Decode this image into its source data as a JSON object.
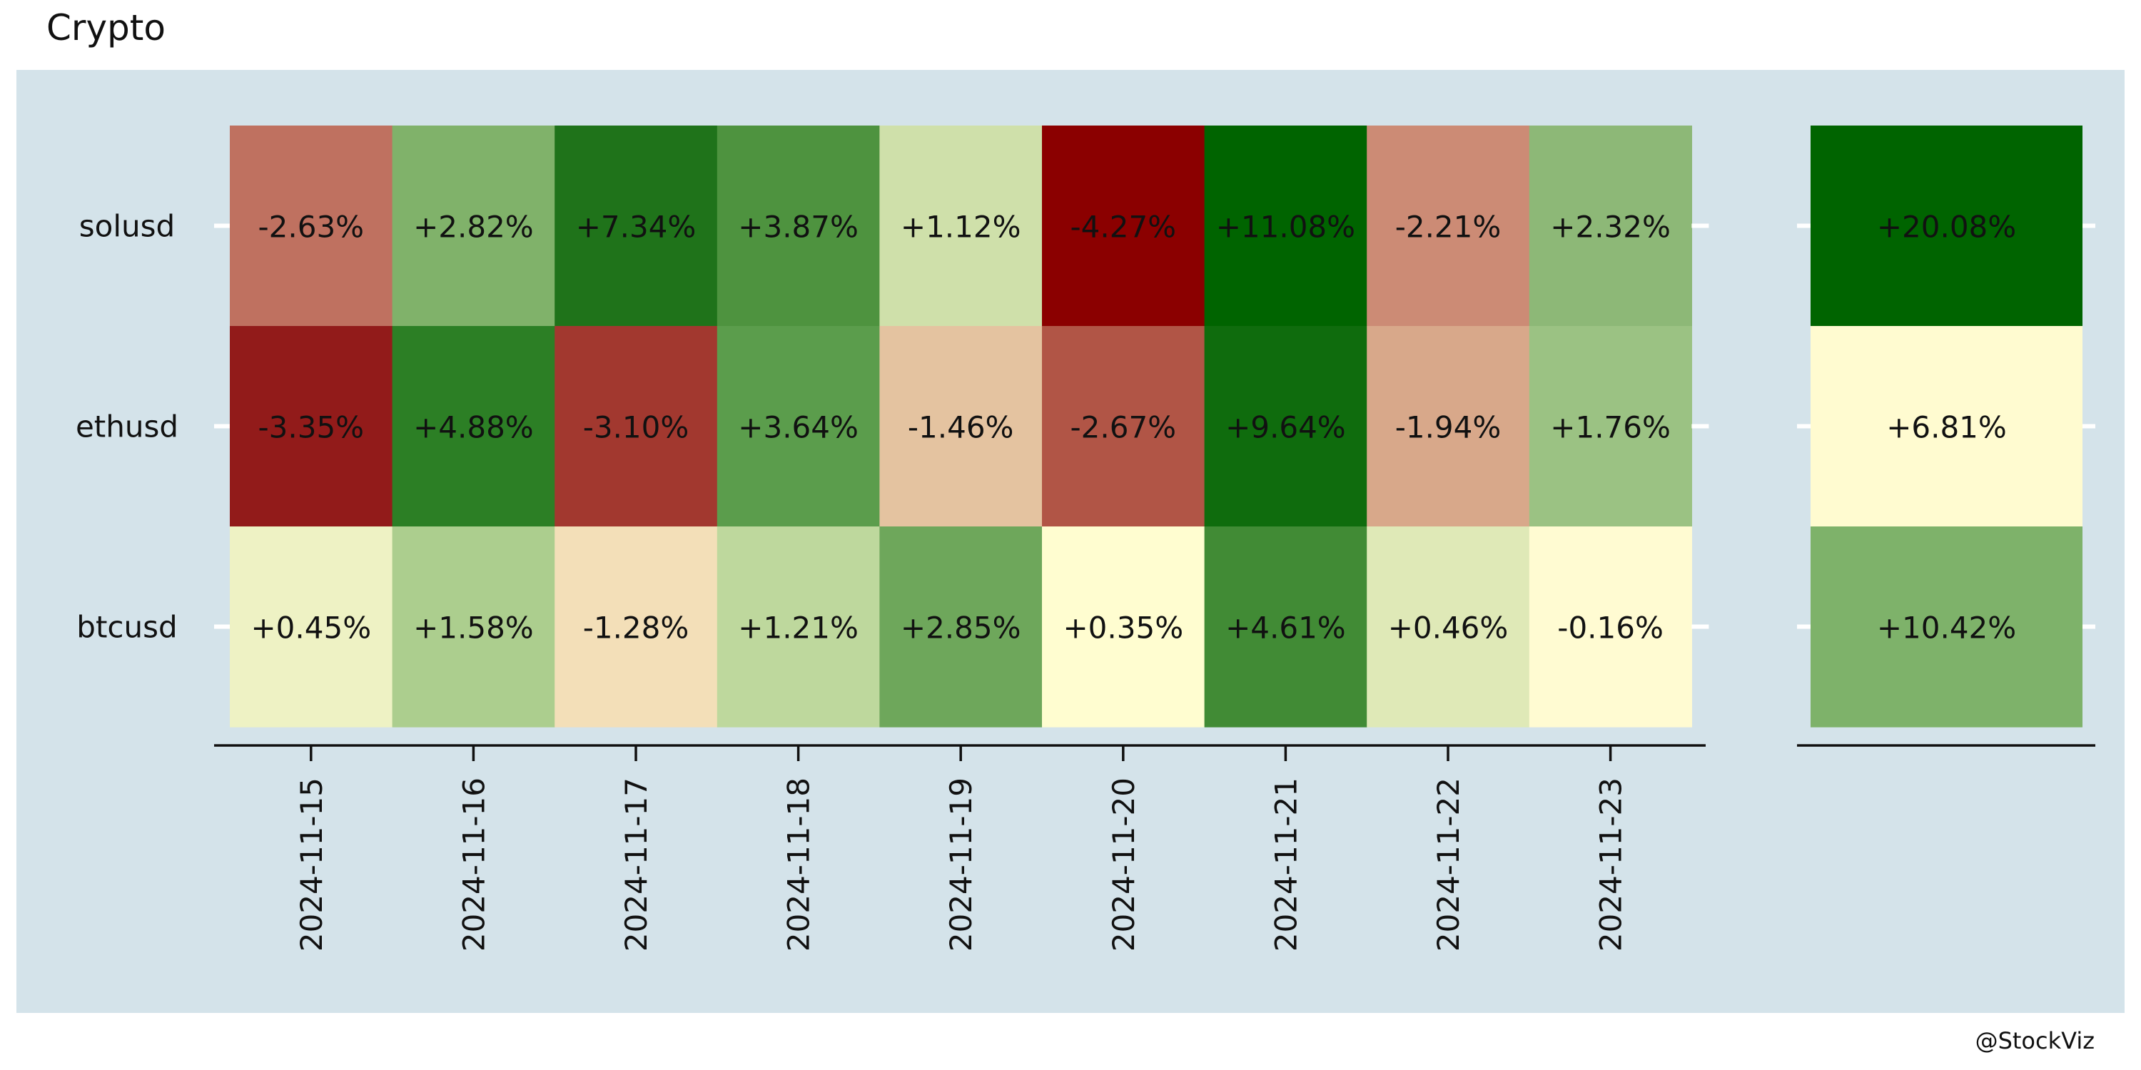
{
  "title": "Crypto",
  "credit": "@StockViz",
  "colors": {
    "panel_background": "#d4e3ea",
    "page_background": "#ffffff",
    "axis_line": "#111111",
    "tick_white": "#ffffff",
    "text": "#111111"
  },
  "chart_data": [
    {
      "type": "heatmap",
      "title": "Crypto",
      "x_categories": [
        "2024-11-15",
        "2024-11-16",
        "2024-11-17",
        "2024-11-18",
        "2024-11-19",
        "2024-11-20",
        "2024-11-21",
        "2024-11-22",
        "2024-11-23"
      ],
      "y_categories": [
        "solusd",
        "ethusd",
        "btcusd"
      ],
      "values": [
        [
          -2.63,
          2.82,
          7.34,
          3.87,
          1.12,
          -4.27,
          11.08,
          -2.21,
          2.32
        ],
        [
          -3.35,
          4.88,
          -3.1,
          3.64,
          -1.46,
          -2.67,
          9.64,
          -1.94,
          1.76
        ],
        [
          0.45,
          1.58,
          -1.28,
          1.21,
          2.85,
          0.35,
          4.61,
          0.46,
          -0.16
        ]
      ],
      "labels": [
        [
          "-2.63%",
          "+2.82%",
          "+7.34%",
          "+3.87%",
          "+1.12%",
          "-4.27%",
          "+11.08%",
          "-2.21%",
          "+2.32%"
        ],
        [
          "-3.35%",
          "+4.88%",
          "-3.10%",
          "+3.64%",
          "-1.46%",
          "-2.67%",
          "+9.64%",
          "-1.94%",
          "+1.76%"
        ],
        [
          "+0.45%",
          "+1.58%",
          "-1.28%",
          "+1.21%",
          "+2.85%",
          "+0.35%",
          "+4.61%",
          "+0.46%",
          "-0.16%"
        ]
      ],
      "colors": [
        [
          "#bf7160",
          "#80b26a",
          "#1f731a",
          "#4e933f",
          "#cfe0aa",
          "#8b0000",
          "#006400",
          "#cc8b75",
          "#8db877"
        ],
        [
          "#921b1a",
          "#2c7f25",
          "#a2382f",
          "#5b9d4c",
          "#e4c3a0",
          "#b15546",
          "#0f6c0d",
          "#d8a88a",
          "#9bc283"
        ],
        [
          "#eef2c4",
          "#acce8e",
          "#f3dfb8",
          "#bed89d",
          "#6ea75b",
          "#fffdd0",
          "#418b35",
          "#dfe9b7",
          "#fffbd2"
        ]
      ]
    },
    {
      "type": "heatmap",
      "y_categories": [
        "solusd",
        "ethusd",
        "btcusd"
      ],
      "values": [
        20.08,
        6.81,
        10.42
      ],
      "labels": [
        "+20.08%",
        "+6.81%",
        "+10.42%"
      ],
      "colors": [
        "#006400",
        "#fffbd0",
        "#7eb26a"
      ]
    }
  ]
}
